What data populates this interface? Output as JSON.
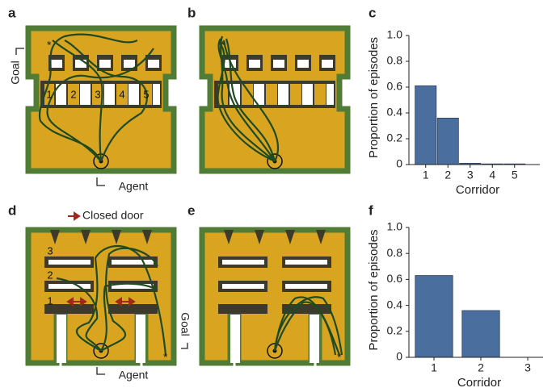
{
  "panel_labels": [
    "a",
    "b",
    "c",
    "d",
    "e",
    "f"
  ],
  "maze_a": {
    "goal_label": "Goal",
    "agent_label": "Agent",
    "goal_marker": "*",
    "corridors": [
      "1",
      "2",
      "3",
      "4",
      "5"
    ]
  },
  "maze_b": {
    "goal_marker": "*"
  },
  "maze_d": {
    "legend": "Closed door",
    "goal_label": "Goal",
    "agent_label": "Agent",
    "goal_marker": "*",
    "corridors": [
      "3",
      "2",
      "1"
    ]
  },
  "maze_e": {
    "goal_marker": "*"
  },
  "chart_data": [
    {
      "type": "bar",
      "x_label": "Corridor",
      "y_label": "Proportion of episodes",
      "categories": [
        "1",
        "2",
        "3",
        "4",
        "5"
      ],
      "values": [
        0.61,
        0.36,
        0.01,
        0.005,
        0.005
      ],
      "color": "#4a6f9f",
      "ylim": [
        0,
        1
      ],
      "yticks": [
        0,
        0.2,
        0.4,
        0.6,
        0.8,
        {
          "value": 1,
          "label": "1.0"
        }
      ]
    },
    {
      "type": "bar",
      "x_label": "Corridor",
      "y_label": "Proportion of episodes",
      "categories": [
        "1",
        "2",
        "3"
      ],
      "values": [
        0.63,
        0.36,
        0
      ],
      "color": "#4a6f9f",
      "ylim": [
        0,
        1
      ],
      "yticks": [
        0,
        0.2,
        0.4,
        0.6,
        0.8,
        {
          "value": 1,
          "label": "1.0"
        }
      ]
    }
  ]
}
